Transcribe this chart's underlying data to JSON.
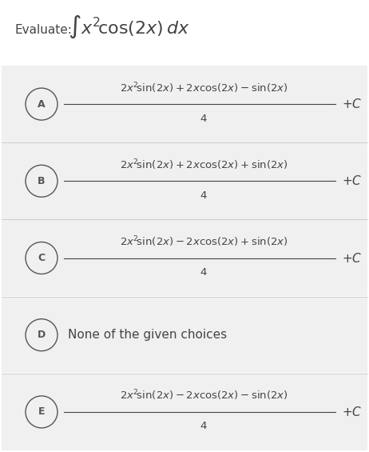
{
  "background_color": "#ffffff",
  "option_bg_color": "#f0f0f0",
  "separator_color": "#cccccc",
  "text_color": "#444444",
  "circle_color": "#555555",
  "title_plain": "Evaluate:",
  "title_math": "$\\int x^2\\!\\cos(2x)\\,dx$",
  "options": [
    {
      "label": "A",
      "numerator": "$2x^2\\!\\sin(2x)+2x\\cos(2x)-\\sin(2x)$",
      "denominator": "$4$",
      "suffix": "$+C$",
      "is_text": false
    },
    {
      "label": "B",
      "numerator": "$2x^2\\!\\sin(2x)+2x\\cos(2x)+\\sin(2x)$",
      "denominator": "$4$",
      "suffix": "$+C$",
      "is_text": false
    },
    {
      "label": "C",
      "numerator": "$2x^2\\!\\sin(2x)-2x\\cos(2x)+\\sin(2x)$",
      "denominator": "$4$",
      "suffix": "$+C$",
      "is_text": false
    },
    {
      "label": "D",
      "numerator": "None of the given choices",
      "denominator": "",
      "suffix": "",
      "is_text": true
    },
    {
      "label": "E",
      "numerator": "$2x^2\\!\\sin(2x)-2x\\cos(2x)-\\sin(2x)$",
      "denominator": "$4$",
      "suffix": "$+C$",
      "is_text": false
    }
  ]
}
